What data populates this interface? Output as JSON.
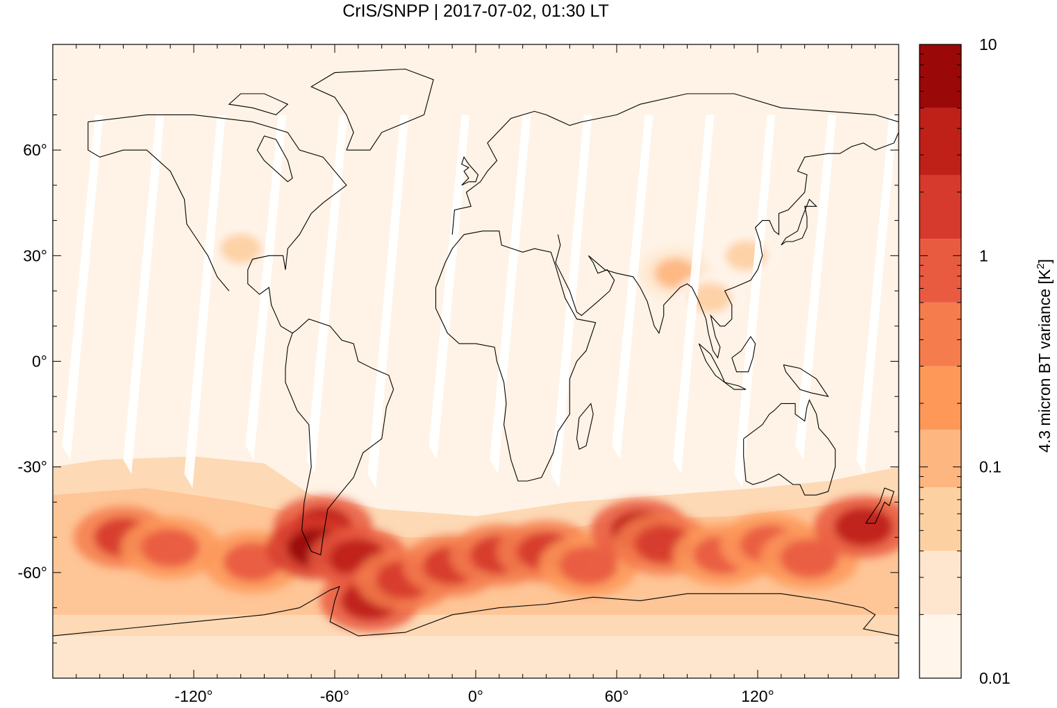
{
  "chart_data": {
    "type": "heatmap",
    "title": "CrIS/SNPP | 2017-07-02, 01:30 LT",
    "xlim": [
      -180,
      180
    ],
    "ylim": [
      -90,
      90
    ],
    "x_ticks": [
      -120,
      -60,
      0,
      60,
      120
    ],
    "y_ticks": [
      60,
      30,
      0,
      -30,
      -60
    ],
    "x_tick_labels": [
      "-120°",
      "-60°",
      "0°",
      "60°",
      "120°"
    ],
    "y_tick_labels": [
      "60°",
      "30°",
      "0°",
      "-30°",
      "-60°"
    ],
    "colorbar": {
      "label_prefix": "4.3 micron BT variance [K",
      "label_sup": "2",
      "label_suffix": "]",
      "scale": "log",
      "range": [
        0.01,
        10
      ],
      "tick_labels": [
        "10",
        "1",
        "0.1",
        "0.01"
      ],
      "tick_values": [
        10,
        1,
        0.1,
        0.01
      ],
      "levels": [
        0.01,
        0.02,
        0.04,
        0.08,
        0.15,
        0.3,
        0.6,
        1.2,
        2.4,
        5,
        10
      ],
      "colors": [
        "#fff5eb",
        "#fee6ce",
        "#fdd0a2",
        "#fdb680",
        "#fd9859",
        "#f57d4d",
        "#e95b41",
        "#d63a2c",
        "#bf2018",
        "#9a0808"
      ]
    },
    "background_level_color": "#fef3e6",
    "hotspots": [
      {
        "lon": -150,
        "lat": -50,
        "value": 1.5
      },
      {
        "lon": -130,
        "lat": -53,
        "value": 0.7
      },
      {
        "lon": -95,
        "lat": -57,
        "value": 0.8
      },
      {
        "lon": -65,
        "lat": -47,
        "value": 4.0
      },
      {
        "lon": -68,
        "lat": -53,
        "value": 5.0
      },
      {
        "lon": -50,
        "lat": -56,
        "value": 2.5
      },
      {
        "lon": -45,
        "lat": -68,
        "value": 3.0
      },
      {
        "lon": -30,
        "lat": -62,
        "value": 2.0
      },
      {
        "lon": -10,
        "lat": -58,
        "value": 1.8
      },
      {
        "lon": 10,
        "lat": -55,
        "value": 1.2
      },
      {
        "lon": 30,
        "lat": -54,
        "value": 2.0
      },
      {
        "lon": 48,
        "lat": -58,
        "value": 1.0
      },
      {
        "lon": 70,
        "lat": -48,
        "value": 3.5
      },
      {
        "lon": 80,
        "lat": -52,
        "value": 1.5
      },
      {
        "lon": 105,
        "lat": -55,
        "value": 1.0
      },
      {
        "lon": 125,
        "lat": -52,
        "value": 0.9
      },
      {
        "lon": 142,
        "lat": -56,
        "value": 0.9
      },
      {
        "lon": 165,
        "lat": -47,
        "value": 2.5
      },
      {
        "lon": -100,
        "lat": 32,
        "value": 0.06
      },
      {
        "lon": 85,
        "lat": 25,
        "value": 0.08
      },
      {
        "lon": 115,
        "lat": 30,
        "value": 0.06
      },
      {
        "lon": 100,
        "lat": 18,
        "value": 0.05
      }
    ]
  }
}
